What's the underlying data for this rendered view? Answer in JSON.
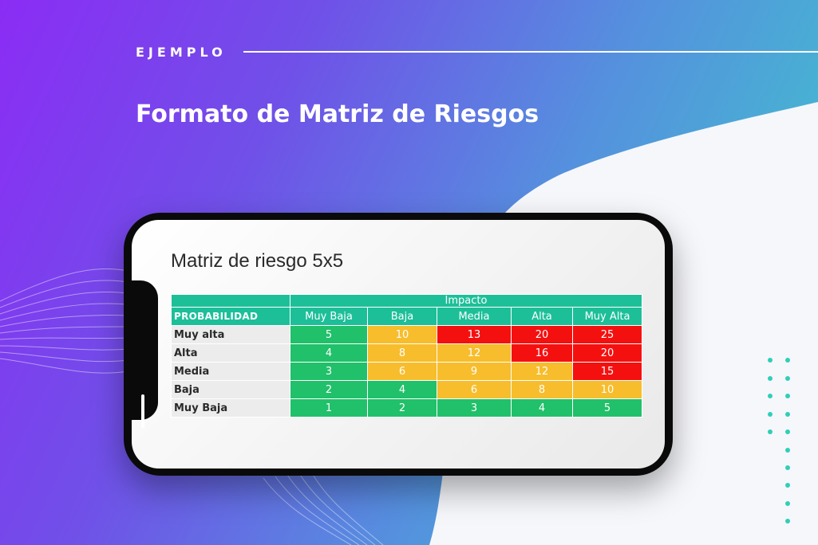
{
  "header": {
    "eyebrow": "EJEMPLO",
    "title": "Formato de Matriz de Riesgos"
  },
  "screen": {
    "title": "Matriz de riesgo 5x5"
  },
  "matrix": {
    "impact_label": "Impacto",
    "probability_label": "PROBABILIDAD",
    "impact_levels": [
      "Muy Baja",
      "Baja",
      "Media",
      "Alta",
      "Muy Alta"
    ],
    "rows": [
      {
        "label": "Muy alta",
        "cells": [
          {
            "value": "5",
            "level": "green"
          },
          {
            "value": "10",
            "level": "yellow"
          },
          {
            "value": "13",
            "level": "red"
          },
          {
            "value": "20",
            "level": "red"
          },
          {
            "value": "25",
            "level": "red"
          }
        ]
      },
      {
        "label": "Alta",
        "cells": [
          {
            "value": "4",
            "level": "green"
          },
          {
            "value": "8",
            "level": "yellow"
          },
          {
            "value": "12",
            "level": "yellow"
          },
          {
            "value": "16",
            "level": "red"
          },
          {
            "value": "20",
            "level": "red"
          }
        ]
      },
      {
        "label": "Media",
        "cells": [
          {
            "value": "3",
            "level": "green"
          },
          {
            "value": "6",
            "level": "yellow"
          },
          {
            "value": "9",
            "level": "yellow"
          },
          {
            "value": "12",
            "level": "yellow"
          },
          {
            "value": "15",
            "level": "red"
          }
        ]
      },
      {
        "label": "Baja",
        "cells": [
          {
            "value": "2",
            "level": "green"
          },
          {
            "value": "4",
            "level": "green"
          },
          {
            "value": "6",
            "level": "yellow"
          },
          {
            "value": "8",
            "level": "yellow"
          },
          {
            "value": "10",
            "level": "yellow"
          }
        ]
      },
      {
        "label": "Muy Baja",
        "cells": [
          {
            "value": "1",
            "level": "green"
          },
          {
            "value": "2",
            "level": "green"
          },
          {
            "value": "3",
            "level": "green"
          },
          {
            "value": "4",
            "level": "green"
          },
          {
            "value": "5",
            "level": "green"
          }
        ]
      }
    ]
  },
  "colors": {
    "header_teal": "#1dbf99",
    "green": "#21c06a",
    "yellow": "#f7bd2c",
    "red": "#f51010",
    "bg_purple": "#8b2cf5",
    "bg_teal": "#3ccfc9"
  },
  "decorations": {
    "wave_lines": "wave-lines-graphic",
    "dot_grid": "dot-grid-graphic"
  }
}
